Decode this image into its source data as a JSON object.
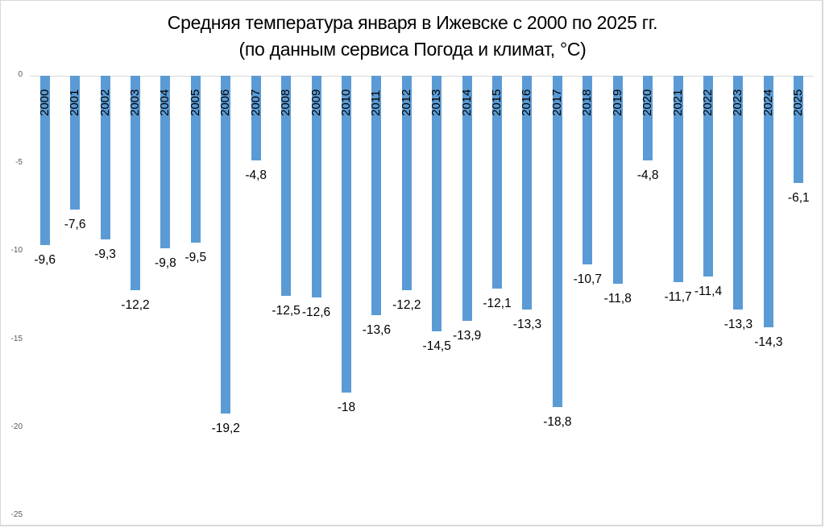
{
  "chart_data": {
    "type": "bar",
    "title": "Средняя температура января в Ижевске с 2000 по 2025 гг.",
    "subtitle": "(по данным сервиса Погода и климат, °C)",
    "xlabel": "",
    "ylabel": "",
    "ylim": [
      -25,
      0
    ],
    "yticks": [
      "0",
      "-5",
      "-10",
      "-15",
      "-20",
      "-25"
    ],
    "grid": false,
    "legend": null,
    "bar_color": "#5b9bd5",
    "categories": [
      "2000",
      "2001",
      "2002",
      "2003",
      "2004",
      "2005",
      "2006",
      "2007",
      "2008",
      "2009",
      "2010",
      "2011",
      "2012",
      "2013",
      "2014",
      "2015",
      "2016",
      "2017",
      "2018",
      "2019",
      "2020",
      "2021",
      "2022",
      "2023",
      "2024",
      "2025"
    ],
    "values": [
      -9.6,
      -7.6,
      -9.3,
      -12.2,
      -9.8,
      -9.5,
      -19.2,
      -4.8,
      -12.5,
      -12.6,
      -18,
      -13.6,
      -12.2,
      -14.5,
      -13.9,
      -12.1,
      -13.3,
      -18.8,
      -10.7,
      -11.8,
      -4.8,
      -11.7,
      -11.4,
      -13.3,
      -14.3,
      -6.1
    ],
    "data_labels": [
      "-9,6",
      "-7,6",
      "-9,3",
      "-12,2",
      "-9,8",
      "-9,5",
      "-19,2",
      "-4,8",
      "-12,5",
      "-12,6",
      "-18",
      "-13,6",
      "-12,2",
      "-14,5",
      "-13,9",
      "-12,1",
      "-13,3",
      "-18,8",
      "-10,7",
      "-11,8",
      "-4,8",
      "-11,7",
      "-11,4",
      "-13,3",
      "-14,3",
      "-6,1"
    ]
  }
}
